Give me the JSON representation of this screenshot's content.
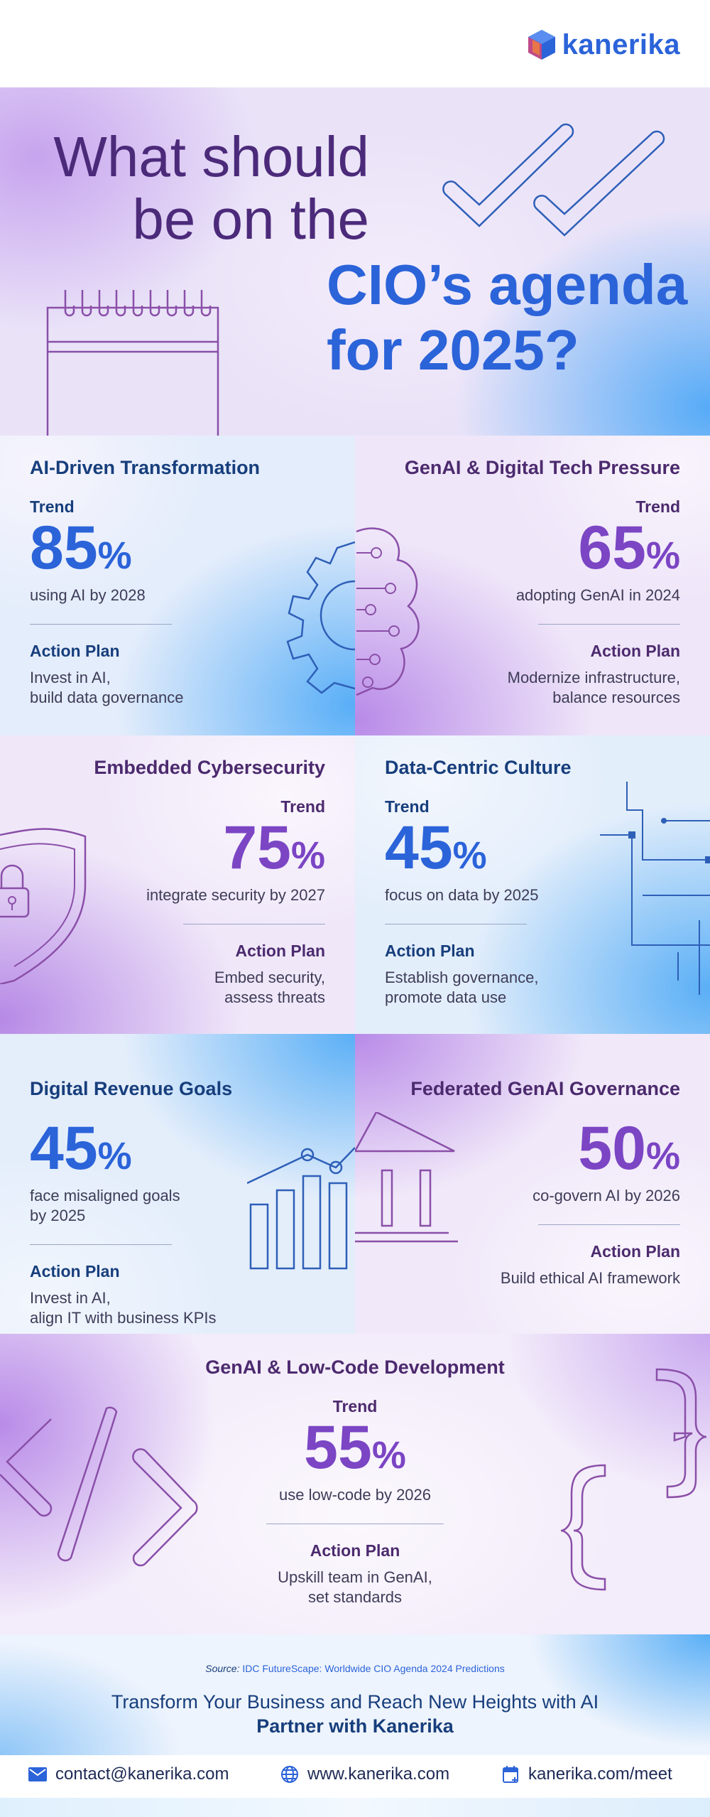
{
  "brand": {
    "name": "kanerika",
    "logo_icon": "hexagon-cube-icon"
  },
  "hero": {
    "title_part1_line1": "What should",
    "title_part1_line2": "be on the",
    "title_part2_line1": "CIO’s agenda",
    "title_part2_line2": "for 2025?"
  },
  "labels": {
    "trend": "Trend",
    "action_plan": "Action Plan"
  },
  "sections": [
    {
      "title": "AI-Driven Transformation",
      "value": "85",
      "unit": "%",
      "desc": "using AI by 2028",
      "plan_line1": "Invest in AI,",
      "plan_line2": "build data governance"
    },
    {
      "title": "GenAI & Digital Tech Pressure",
      "value": "65",
      "unit": "%",
      "desc": "adopting GenAI in 2024",
      "plan_line1": "Modernize infrastructure,",
      "plan_line2": "balance resources"
    },
    {
      "title": "Embedded Cybersecurity",
      "value": "75",
      "unit": "%",
      "desc": "integrate security by 2027",
      "plan_line1": "Embed security,",
      "plan_line2": "assess threats"
    },
    {
      "title": "Data-Centric Culture",
      "value": "45",
      "unit": "%",
      "desc": "focus on data by 2025",
      "plan_line1": "Establish governance,",
      "plan_line2": "promote data use"
    },
    {
      "title": "Digital Revenue Goals",
      "value": "45",
      "unit": "%",
      "desc_line1": "face misaligned goals",
      "desc_line2": "by 2025",
      "plan_line1": "Invest in AI,",
      "plan_line2": "align IT with business KPIs"
    },
    {
      "title": "Federated GenAI Governance",
      "value": "50",
      "unit": "%",
      "desc": "co-govern AI by 2026",
      "plan_line1": "Build ethical AI framework"
    },
    {
      "title": "GenAI & Low-Code Development",
      "value": "55",
      "unit": "%",
      "desc": "use low-code by 2026",
      "plan_line1": "Upskill team in GenAI,",
      "plan_line2": "set standards"
    }
  ],
  "footer": {
    "source_label": "Source:",
    "source_text": "IDC FutureScape: Worldwide CIO Agenda 2024 Predictions",
    "cta_line1": "Transform Your Business and Reach New Heights with AI",
    "cta_line2": "Partner with Kanerika"
  },
  "contact": {
    "email": "contact@kanerika.com",
    "website": "www.kanerika.com",
    "meet": "kanerika.com/meet"
  },
  "colors": {
    "blue": "#2b63d9",
    "purple": "#7b45c4",
    "navy": "#173e7c",
    "plum": "#4c2a6e"
  }
}
